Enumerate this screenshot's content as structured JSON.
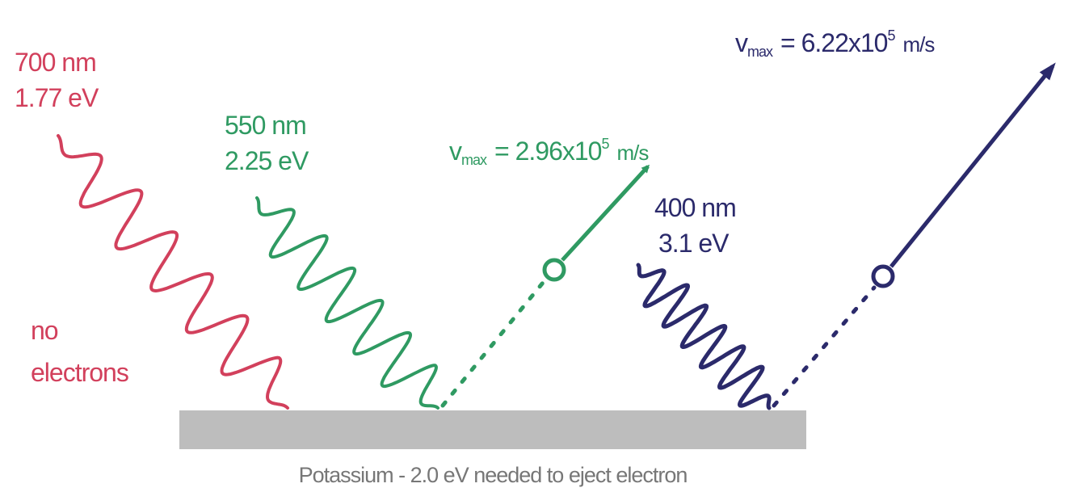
{
  "photons": [
    {
      "wavelength": "700 nm",
      "energy": "1.77 eV",
      "result": [
        "no",
        "electrons"
      ]
    },
    {
      "wavelength": "550 nm",
      "energy": "2.25 eV"
    },
    {
      "wavelength": "400 nm",
      "energy": "3.1 eV"
    }
  ],
  "electrons": [
    {
      "symbol": "v",
      "subscript": "max",
      "value": "= 2.96x10",
      "exponent": "5",
      "unit": "m/s"
    },
    {
      "symbol": "v",
      "subscript": "max",
      "value": "= 6.22x10",
      "exponent": "5",
      "unit": "m/s"
    }
  ],
  "caption": "Potassium - 2.0 eV needed to eject electron"
}
